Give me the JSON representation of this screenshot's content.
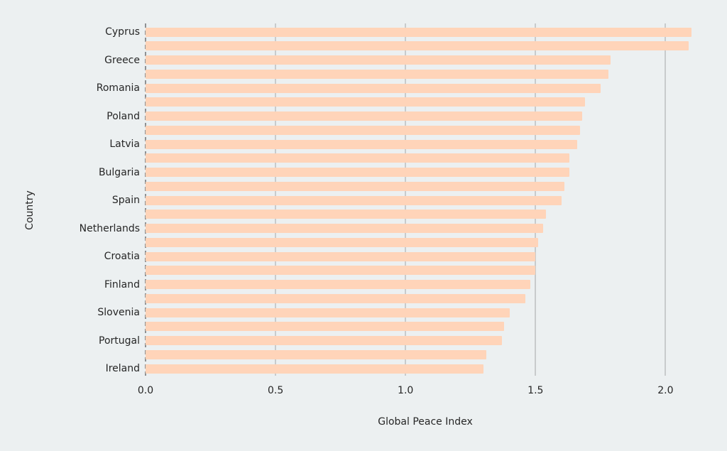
{
  "chart_data": {
    "type": "bar",
    "orientation": "horizontal",
    "title": "",
    "xlabel": "Global Peace Index",
    "ylabel": "Country",
    "xlim": [
      0,
      2.15
    ],
    "xticks": [
      0.0,
      0.5,
      1.0,
      1.5,
      2.0
    ],
    "xtick_labels": [
      "0.0",
      "0.5",
      "1.0",
      "1.5",
      "2.0"
    ],
    "grid": true,
    "bar_color": "#ffd4b9",
    "categories": [
      "Cyprus",
      "",
      "Greece",
      "",
      "Romania",
      "",
      "Poland",
      "",
      "Latvia",
      "",
      "Bulgaria",
      "",
      "Spain",
      "",
      "Netherlands",
      "",
      "Croatia",
      "",
      "Finland",
      "",
      "Slovenia",
      "",
      "Portugal",
      "",
      "Ireland"
    ],
    "values": [
      2.1,
      2.09,
      1.79,
      1.78,
      1.75,
      1.69,
      1.68,
      1.67,
      1.66,
      1.63,
      1.63,
      1.61,
      1.6,
      1.54,
      1.53,
      1.51,
      1.5,
      1.5,
      1.48,
      1.46,
      1.4,
      1.38,
      1.37,
      1.31,
      1.3
    ]
  },
  "labels": {
    "xlabel": "Global Peace Index",
    "ylabel": "Country",
    "visible_countries": [
      "Cyprus",
      "Greece",
      "Romania",
      "Poland",
      "Latvia",
      "Bulgaria",
      "Spain",
      "Netherlands",
      "Croatia",
      "Finland",
      "Slovenia",
      "Portugal",
      "Ireland"
    ]
  }
}
